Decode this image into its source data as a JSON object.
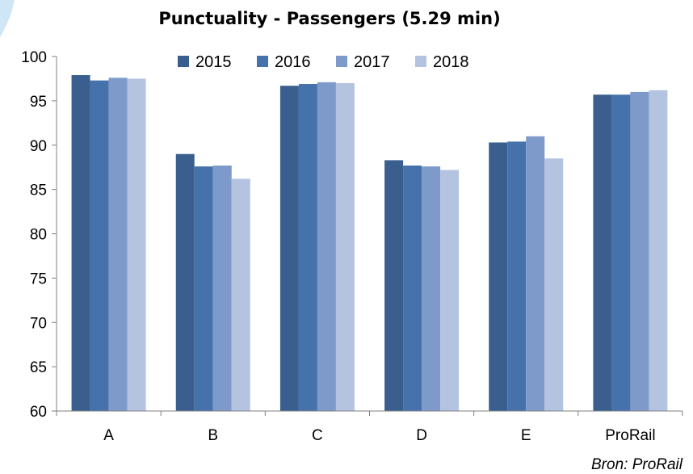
{
  "chart_data": {
    "type": "bar",
    "title": "Punctuality - Passengers (5.29 min)",
    "xlabel": "",
    "ylabel": "",
    "categories": [
      "A",
      "B",
      "C",
      "D",
      "E",
      "ProRail"
    ],
    "ylim": [
      60,
      100
    ],
    "yticks": [
      "60",
      "65",
      "70",
      "75",
      "80",
      "85",
      "90",
      "95",
      "100"
    ],
    "legend_position": "top",
    "grid": false,
    "series": [
      {
        "name": "2015",
        "color": "#3a5f8f",
        "values": [
          97.9,
          89.0,
          96.7,
          88.3,
          90.3,
          95.7
        ]
      },
      {
        "name": "2016",
        "color": "#4672ab",
        "values": [
          97.3,
          87.6,
          96.9,
          87.7,
          90.4,
          95.7
        ]
      },
      {
        "name": "2017",
        "color": "#7d9acb",
        "values": [
          97.6,
          87.7,
          97.1,
          87.6,
          91.0,
          96.0
        ]
      },
      {
        "name": "2018",
        "color": "#b3c3e0",
        "values": [
          97.5,
          86.2,
          97.0,
          87.2,
          88.5,
          96.2
        ]
      }
    ],
    "source": "Bron: ProRail"
  }
}
